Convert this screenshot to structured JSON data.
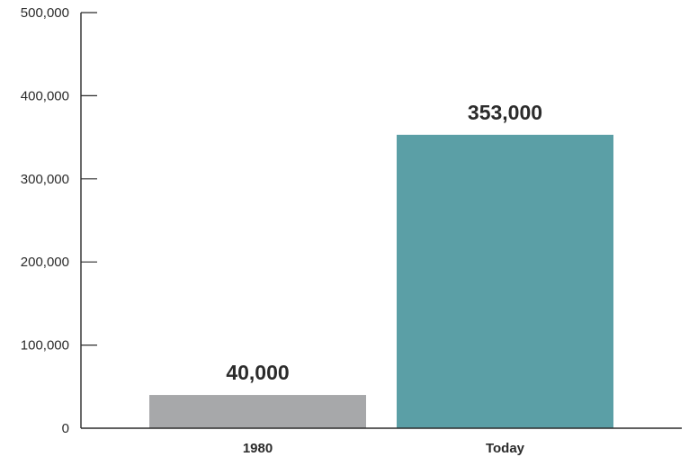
{
  "chart_data": {
    "type": "bar",
    "categories": [
      "1980",
      "Today"
    ],
    "values": [
      40000,
      353000
    ],
    "value_labels": [
      "40,000",
      "353,000"
    ],
    "bar_colors": [
      "#a7a8aa",
      "#5b9fa6"
    ],
    "ylim": [
      0,
      500000
    ],
    "yticks": [
      0,
      100000,
      200000,
      300000,
      400000,
      500000
    ],
    "ytick_labels": [
      "0",
      "100,000",
      "200,000",
      "300,000",
      "400,000",
      "500,000"
    ],
    "title": "",
    "xlabel": "",
    "ylabel": "",
    "grid": false,
    "legend": false,
    "axis_color": "#2b2b2b"
  }
}
